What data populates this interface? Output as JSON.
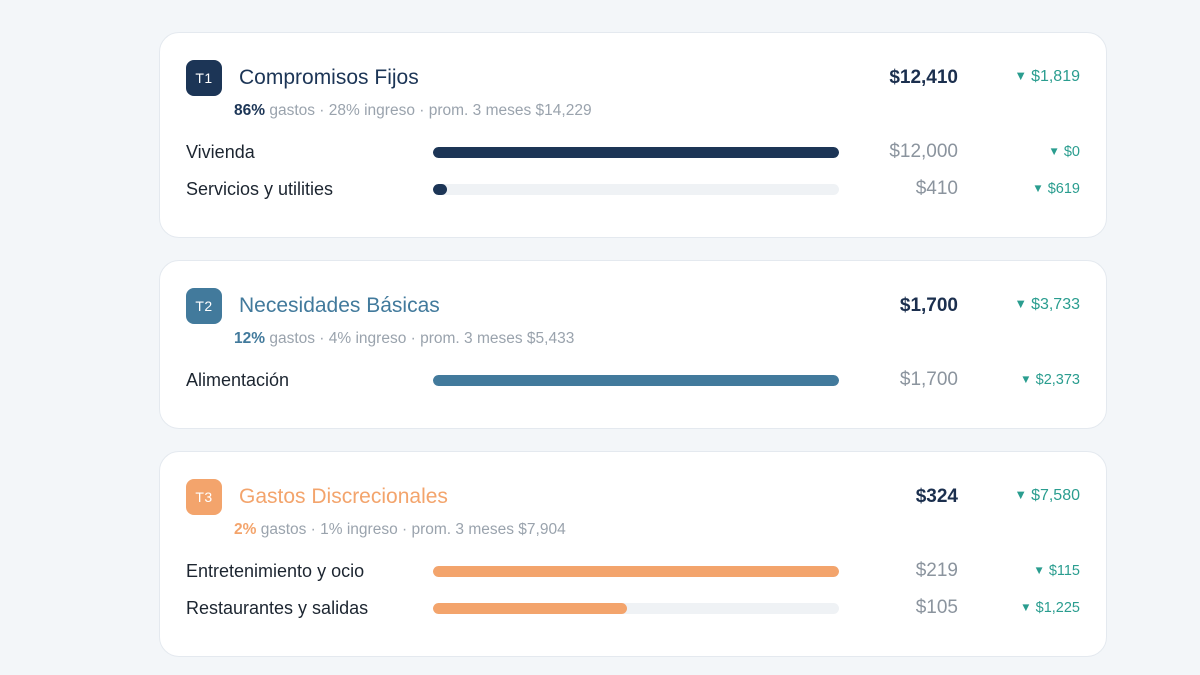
{
  "tiers": [
    {
      "badge": "T1",
      "title": "Compromisos Fijos",
      "color": "#1c3556",
      "total": "$12,410",
      "delta": "$1,819",
      "meta": {
        "pct": "86%",
        "rest": " gastos · 28% ingreso · prom. 3 meses $14,229"
      },
      "rows": [
        {
          "label": "Vivienda",
          "amount": "$12,000",
          "delta": "$0",
          "fill": 1.0
        },
        {
          "label": "Servicios y utilities",
          "amount": "$410",
          "delta": "$619",
          "fill": 0.034
        }
      ]
    },
    {
      "badge": "T2",
      "title": "Necesidades Básicas",
      "color": "#427a9c",
      "total": "$1,700",
      "delta": "$3,733",
      "meta": {
        "pct": "12%",
        "rest": " gastos · 4% ingreso · prom. 3 meses $5,433"
      },
      "rows": [
        {
          "label": "Alimentación",
          "amount": "$1,700",
          "delta": "$2,373",
          "fill": 1.0
        }
      ]
    },
    {
      "badge": "T3",
      "title": "Gastos Discrecionales",
      "color": "#f3a46c",
      "total": "$324",
      "delta": "$7,580",
      "meta": {
        "pct": "2%",
        "rest": " gastos · 1% ingreso · prom. 3 meses $7,904"
      },
      "rows": [
        {
          "label": "Entretenimiento y ocio",
          "amount": "$219",
          "delta": "$115",
          "fill": 1.0
        },
        {
          "label": "Restaurantes y salidas",
          "amount": "$105",
          "delta": "$1,225",
          "fill": 0.479
        }
      ]
    }
  ]
}
